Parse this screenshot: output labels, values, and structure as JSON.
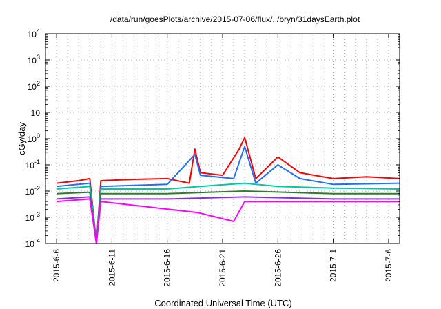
{
  "chart_data": {
    "type": "line",
    "title": "/data/run/goesPlots/archive/2015-07-06/flux/../bryn/31daysEarth.plot",
    "xlabel": "Coordinated Universal Time (UTC)",
    "ylabel": "cGy/day",
    "yscale": "log",
    "ylim": [
      0.0001,
      10000
    ],
    "y_ticks": [
      {
        "value": 0.0001,
        "base": "10",
        "exp": "-4"
      },
      {
        "value": 0.001,
        "base": "10",
        "exp": "-3"
      },
      {
        "value": 0.01,
        "base": "10",
        "exp": "-2"
      },
      {
        "value": 0.1,
        "base": "10",
        "exp": "-1"
      },
      {
        "value": 1,
        "base": "10",
        "exp": "0"
      },
      {
        "value": 10,
        "base": "10",
        "exp": ""
      },
      {
        "value": 100,
        "base": "10",
        "exp": "2"
      },
      {
        "value": 1000,
        "base": "10",
        "exp": "3"
      },
      {
        "value": 10000,
        "base": "10",
        "exp": "4"
      }
    ],
    "xlim": [
      "2015-06-05",
      "2015-07-07"
    ],
    "x_ticks": [
      "2015-6-6",
      "2015-6-11",
      "2015-6-16",
      "2015-6-21",
      "2015-6-26",
      "2015-7-1",
      "2015-7-6"
    ],
    "grid": true,
    "series": [
      {
        "color": "#ff0000",
        "points": [
          [
            "2015-06-06",
            0.02
          ],
          [
            "2015-06-08",
            0.025
          ],
          [
            "2015-06-09",
            0.03
          ],
          [
            "2015-06-09.6",
            0.0001
          ],
          [
            "2015-06-10",
            0.025
          ],
          [
            "2015-06-13",
            0.028
          ],
          [
            "2015-06-16",
            0.03
          ],
          [
            "2015-06-18",
            0.02
          ],
          [
            "2015-06-18.5",
            0.4
          ],
          [
            "2015-06-19",
            0.05
          ],
          [
            "2015-06-21",
            0.04
          ],
          [
            "2015-06-22.5",
            0.4
          ],
          [
            "2015-06-23",
            1.1
          ],
          [
            "2015-06-24",
            0.03
          ],
          [
            "2015-06-26",
            0.2
          ],
          [
            "2015-06-28",
            0.05
          ],
          [
            "2015-07-01",
            0.03
          ],
          [
            "2015-07-04",
            0.035
          ],
          [
            "2015-07-07",
            0.03
          ]
        ]
      },
      {
        "color": "#1e6fff",
        "points": [
          [
            "2015-06-06",
            0.015
          ],
          [
            "2015-06-09",
            0.02
          ],
          [
            "2015-06-09.6",
            0.0001
          ],
          [
            "2015-06-10",
            0.015
          ],
          [
            "2015-06-16",
            0.018
          ],
          [
            "2015-06-18.5",
            0.25
          ],
          [
            "2015-06-19",
            0.04
          ],
          [
            "2015-06-22",
            0.03
          ],
          [
            "2015-06-23",
            0.5
          ],
          [
            "2015-06-24",
            0.02
          ],
          [
            "2015-06-26",
            0.1
          ],
          [
            "2015-06-28",
            0.03
          ],
          [
            "2015-07-01",
            0.018
          ],
          [
            "2015-07-07",
            0.02
          ]
        ]
      },
      {
        "color": "#00c8a0",
        "points": [
          [
            "2015-06-06",
            0.012
          ],
          [
            "2015-06-09",
            0.015
          ],
          [
            "2015-06-09.6",
            0.0001
          ],
          [
            "2015-06-10",
            0.012
          ],
          [
            "2015-06-16",
            0.012
          ],
          [
            "2015-06-19",
            0.015
          ],
          [
            "2015-06-23",
            0.02
          ],
          [
            "2015-06-26",
            0.015
          ],
          [
            "2015-07-01",
            0.013
          ],
          [
            "2015-07-07",
            0.012
          ]
        ]
      },
      {
        "color": "#2f7a2f",
        "points": [
          [
            "2015-06-06",
            0.008
          ],
          [
            "2015-06-09",
            0.009
          ],
          [
            "2015-06-09.6",
            0.0001
          ],
          [
            "2015-06-10",
            0.008
          ],
          [
            "2015-06-16",
            0.008
          ],
          [
            "2015-06-23",
            0.01
          ],
          [
            "2015-07-01",
            0.008
          ],
          [
            "2015-07-07",
            0.008
          ]
        ]
      },
      {
        "color": "#8a2be2",
        "points": [
          [
            "2015-06-06",
            0.005
          ],
          [
            "2015-06-09",
            0.006
          ],
          [
            "2015-06-09.6",
            0.0001
          ],
          [
            "2015-06-10",
            0.005
          ],
          [
            "2015-06-16",
            0.005
          ],
          [
            "2015-06-23",
            0.006
          ],
          [
            "2015-07-01",
            0.005
          ],
          [
            "2015-07-07",
            0.005
          ]
        ]
      },
      {
        "color": "#ff00ff",
        "points": [
          [
            "2015-06-06",
            0.004
          ],
          [
            "2015-06-09",
            0.005
          ],
          [
            "2015-06-09.6",
            0.0001
          ],
          [
            "2015-06-10",
            0.004
          ],
          [
            "2015-06-18.8",
            0.0015
          ],
          [
            "2015-06-22",
            0.0007
          ],
          [
            "2015-06-23",
            0.004
          ],
          [
            "2015-07-01",
            0.004
          ],
          [
            "2015-07-07",
            0.004
          ]
        ]
      }
    ]
  },
  "colors": {
    "background": "#ffffff",
    "grid": "#a0a0a0",
    "axis": "#000000"
  }
}
